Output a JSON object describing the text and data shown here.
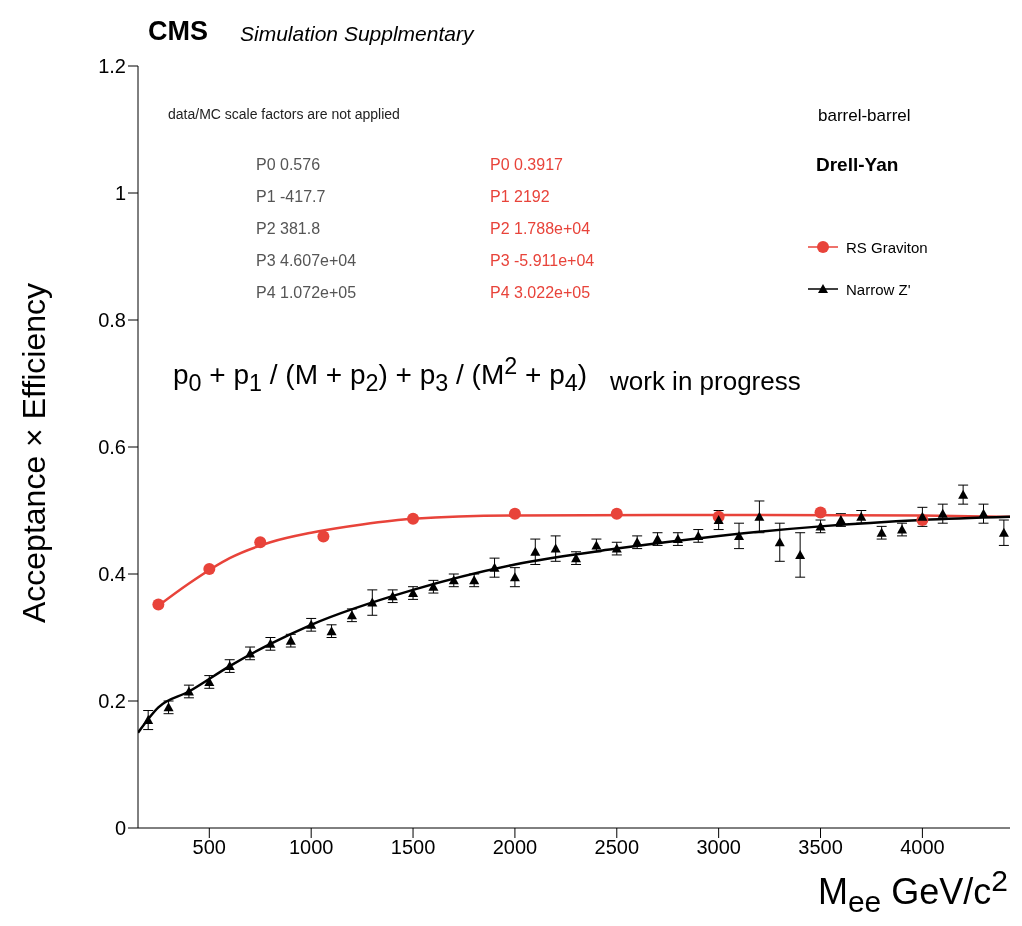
{
  "chart_data": {
    "type": "scatter",
    "title": "CMS",
    "subtitle": "Simulation Supplmentary",
    "xlabel": "M$_{ee}$ GeV/c$^{2}$",
    "ylabel": "Acceptance × Efficiency",
    "xlim": [
      150,
      4430
    ],
    "xticks": [
      500,
      1000,
      1500,
      2000,
      2500,
      3000,
      3500,
      4000
    ],
    "ylim": [
      0,
      1.2
    ],
    "yticks": [
      0,
      0.2,
      0.4,
      0.6,
      0.8,
      1,
      1.2
    ],
    "legend": "top right",
    "series": [
      {
        "name": "RS Graviton",
        "color": "#e8433a",
        "marker": "circle",
        "x": [
          250,
          500,
          750,
          1060,
          1500,
          2000,
          2500,
          3000,
          3500,
          4000
        ],
        "values": [
          0.352,
          0.408,
          0.45,
          0.459,
          0.487,
          0.495,
          0.495,
          0.49,
          0.497,
          0.485
        ]
      },
      {
        "name": "Narrow Z'",
        "color": "#000000",
        "marker": "triangle",
        "x": [
          200,
          300,
          400,
          500,
          600,
          700,
          800,
          900,
          1000,
          1100,
          1200,
          1300,
          1400,
          1500,
          1600,
          1700,
          1800,
          1900,
          2000,
          2100,
          2200,
          2300,
          2400,
          2500,
          2600,
          2700,
          2800,
          2900,
          3000,
          3100,
          3200,
          3300,
          3400,
          3500,
          3600,
          3700,
          3800,
          3900,
          4000,
          4100,
          4200,
          4300,
          4400
        ],
        "values": [
          0.17,
          0.19,
          0.215,
          0.23,
          0.255,
          0.275,
          0.29,
          0.295,
          0.32,
          0.31,
          0.335,
          0.355,
          0.365,
          0.37,
          0.38,
          0.39,
          0.39,
          0.41,
          0.395,
          0.435,
          0.44,
          0.425,
          0.445,
          0.44,
          0.45,
          0.455,
          0.455,
          0.46,
          0.485,
          0.46,
          0.49,
          0.45,
          0.43,
          0.475,
          0.485,
          0.49,
          0.465,
          0.47,
          0.49,
          0.495,
          0.525,
          0.495,
          0.465
        ],
        "errors": [
          0.015,
          0.01,
          0.01,
          0.01,
          0.01,
          0.01,
          0.01,
          0.01,
          0.01,
          0.01,
          0.01,
          0.02,
          0.01,
          0.01,
          0.01,
          0.01,
          0.01,
          0.015,
          0.015,
          0.02,
          0.02,
          0.01,
          0.01,
          0.01,
          0.01,
          0.01,
          0.01,
          0.01,
          0.015,
          0.02,
          0.025,
          0.03,
          0.035,
          0.01,
          0.01,
          0.01,
          0.01,
          0.01,
          0.015,
          0.015,
          0.015,
          0.015,
          0.02
        ]
      },
      {
        "type": "line",
        "color": "#e8433a",
        "x": [
          250,
          400,
          600,
          800,
          1000,
          1250,
          1500,
          2000,
          3000,
          4000,
          4430
        ],
        "values": [
          0.35,
          0.385,
          0.425,
          0.45,
          0.465,
          0.478,
          0.487,
          0.492,
          0.493,
          0.492,
          0.49
        ]
      },
      {
        "type": "line",
        "color": "#000000",
        "x": [
          150,
          250,
          400,
          600,
          800,
          1000,
          1500,
          2000,
          2500,
          3000,
          3500,
          4000,
          4430
        ],
        "values": [
          0.15,
          0.19,
          0.215,
          0.255,
          0.29,
          0.32,
          0.375,
          0.415,
          0.44,
          0.46,
          0.475,
          0.485,
          0.49
        ]
      }
    ],
    "annotations": [
      "data/MC scale factors are not applied",
      "P0 0.576",
      "P1 -417.7",
      "P2 381.8",
      "P3 4.607e+04",
      "P4 1.072e+05",
      "P0 0.3917",
      "P1 2192",
      "P2 1.788e+04",
      "P3 -5.911e+04",
      "P4 3.022e+05",
      "p$_{0}$ + p$_{1}$ / (M + p$_{2}$) + p$_{3}$ / (M$^{2}$ + p$_{4}$)",
      "work in progress",
      "barrel-barrel",
      "Drell-Yan"
    ]
  }
}
